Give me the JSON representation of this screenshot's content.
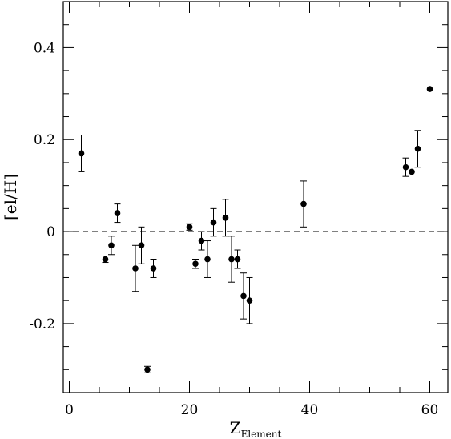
{
  "chart_data": {
    "type": "scatter",
    "title": "",
    "xlabel": "Z",
    "xlabel_subscript": "Element",
    "ylabel": "[el/H]",
    "xlim": [
      -1,
      63
    ],
    "ylim": [
      -0.35,
      0.5
    ],
    "x_ticks": [
      0,
      20,
      40,
      60
    ],
    "x_tick_labels": [
      "0",
      "20",
      "40",
      "60"
    ],
    "x_minor_step": 5,
    "y_ticks": [
      -0.2,
      0,
      0.2,
      0.4
    ],
    "y_tick_labels": [
      "-0.2",
      "0",
      "0.2",
      "0.4"
    ],
    "y_minor_step": 0.05,
    "grid": false,
    "reference_line": {
      "y": 0,
      "style": "dashed"
    },
    "points": [
      {
        "x": 2,
        "y": 0.17,
        "err": 0.04
      },
      {
        "x": 6,
        "y": -0.06,
        "err": 0.007
      },
      {
        "x": 7,
        "y": -0.03,
        "err": 0.02
      },
      {
        "x": 8,
        "y": 0.04,
        "err": 0.02
      },
      {
        "x": 11,
        "y": -0.08,
        "err": 0.05
      },
      {
        "x": 12,
        "y": -0.03,
        "err": 0.04
      },
      {
        "x": 13,
        "y": -0.3,
        "err": 0.007
      },
      {
        "x": 14,
        "y": -0.08,
        "err": 0.02
      },
      {
        "x": 20,
        "y": 0.01,
        "err": 0.007
      },
      {
        "x": 21,
        "y": -0.07,
        "err": 0.01
      },
      {
        "x": 22,
        "y": -0.02,
        "err": 0.02
      },
      {
        "x": 23,
        "y": -0.06,
        "err": 0.04
      },
      {
        "x": 24,
        "y": 0.02,
        "err": 0.03
      },
      {
        "x": 26,
        "y": 0.03,
        "err": 0.04
      },
      {
        "x": 27,
        "y": -0.06,
        "err": 0.05
      },
      {
        "x": 28,
        "y": -0.06,
        "err": 0.02
      },
      {
        "x": 29,
        "y": -0.14,
        "err": 0.05
      },
      {
        "x": 30,
        "y": -0.15,
        "err": 0.05
      },
      {
        "x": 39,
        "y": 0.06,
        "err": 0.05
      },
      {
        "x": 56,
        "y": 0.14,
        "err": 0.02
      },
      {
        "x": 57,
        "y": 0.13,
        "err": 0
      },
      {
        "x": 58,
        "y": 0.18,
        "err": 0.04
      },
      {
        "x": 60,
        "y": 0.31,
        "err": 0
      }
    ]
  }
}
